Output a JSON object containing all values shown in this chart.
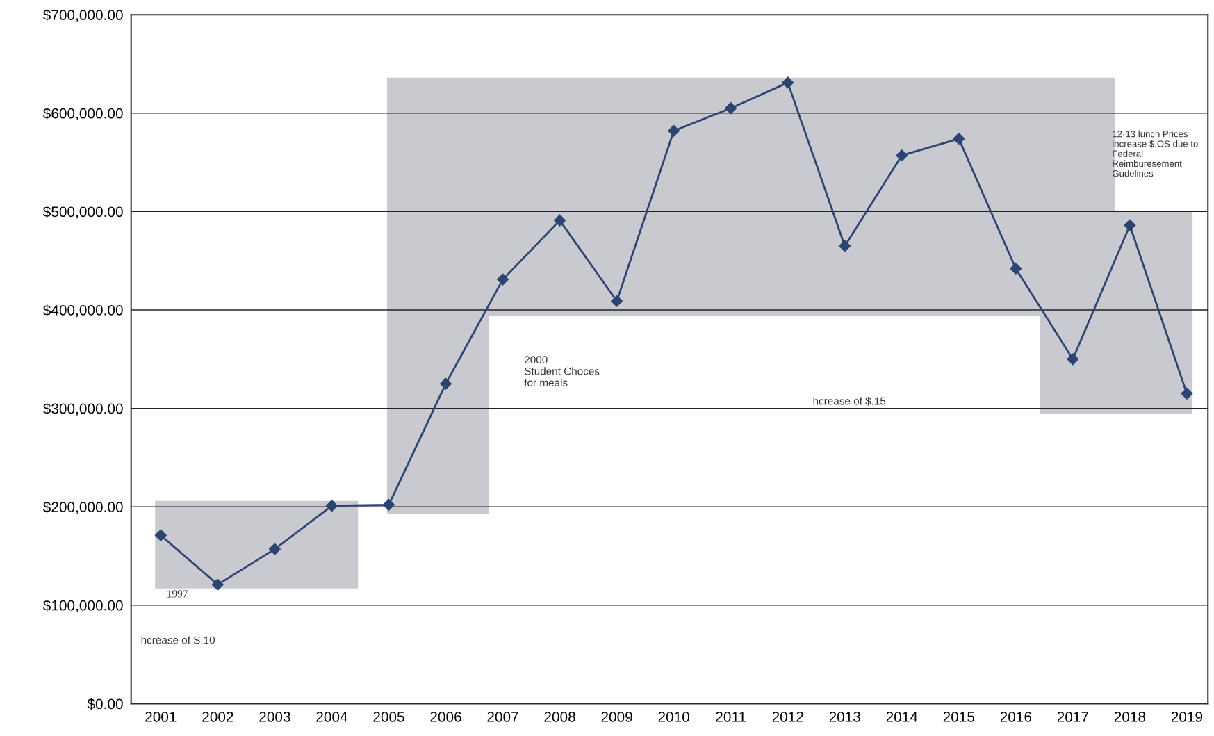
{
  "chart_data": {
    "type": "line",
    "categories": [
      "2001",
      "2002",
      "2003",
      "2004",
      "2005",
      "2006",
      "2007",
      "2008",
      "2009",
      "2010",
      "2011",
      "2012",
      "2013",
      "2014",
      "2015",
      "2016",
      "2017",
      "2018",
      "2019"
    ],
    "series": [
      {
        "color": "#2b4470",
        "values": [
          171000,
          121000,
          157000,
          201000,
          202000,
          325000,
          431000,
          491000,
          409000,
          582000,
          605000,
          631000,
          465000,
          557000,
          574000,
          442000,
          350000,
          486000,
          315000
        ]
      }
    ],
    "ylim": [
      0,
      700000
    ],
    "yticks": [
      {
        "value": 0,
        "label": "$0.00"
      },
      {
        "value": 100000,
        "label": "$100,000.00"
      },
      {
        "value": 200000,
        "label": "$200,000.00"
      },
      {
        "value": 300000,
        "label": "$300,000.00"
      },
      {
        "value": 400000,
        "label": "$400,000.00"
      },
      {
        "value": 500000,
        "label": "$500,000.00"
      },
      {
        "value": 600000,
        "label": "$600,000.00"
      },
      {
        "value": 700000,
        "label": "$700,000.00"
      }
    ],
    "grid": "y",
    "marker": "diamond",
    "line_style": "solid",
    "annotations": [
      "1997",
      "hcrease of S.10",
      "2000\nStudent Choces\nfor meals",
      "hcrease of $.15",
      "12·13 lunch Prices\nincrease $.OS due to\nFederal\nReimburesement\nGudelines"
    ]
  }
}
